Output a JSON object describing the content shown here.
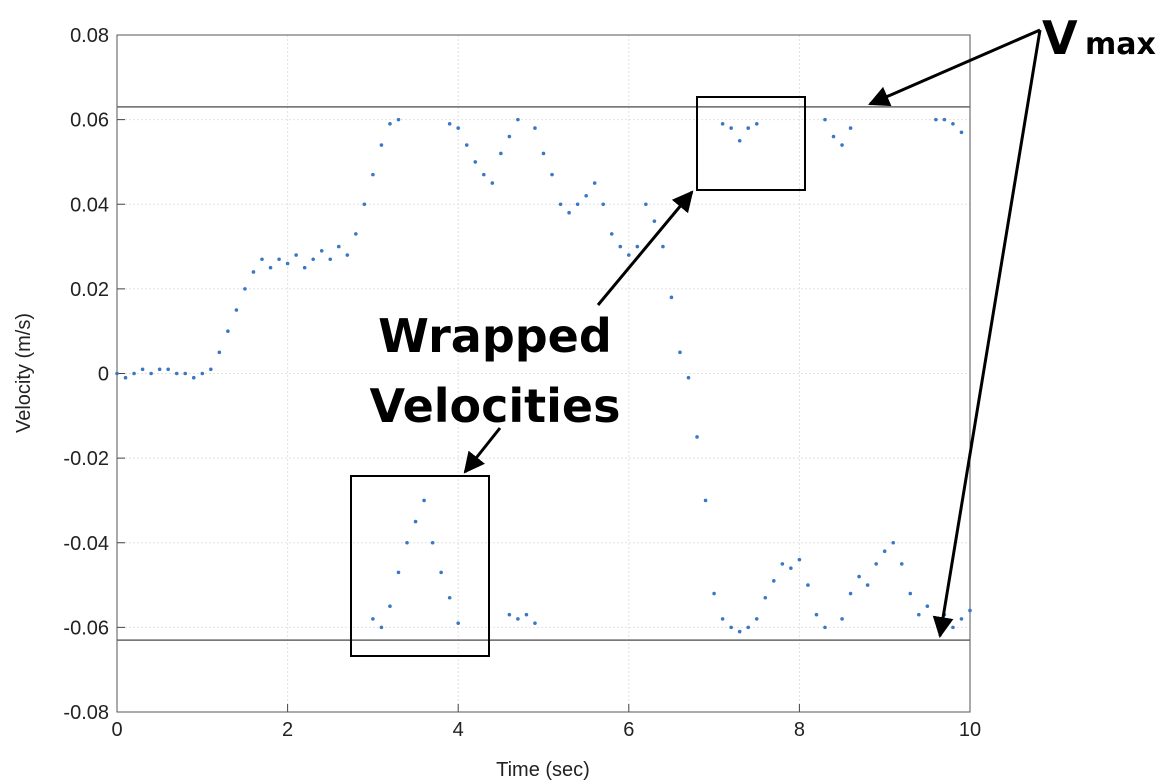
{
  "chart_data": {
    "type": "scatter",
    "xlabel": "Time (sec)",
    "ylabel": "Velocity (m/s)",
    "xlim": [
      0,
      10
    ],
    "ylim": [
      -0.08,
      0.08
    ],
    "xticks": [
      0,
      2,
      4,
      6,
      8,
      10
    ],
    "yticks": [
      -0.08,
      -0.06,
      -0.04,
      -0.02,
      0,
      0.02,
      0.04,
      0.06,
      0.08
    ],
    "grid": true,
    "color": "#3a78c2",
    "reference_lines": [
      0.063,
      -0.063
    ],
    "annotations": {
      "vmax": {
        "text": "V",
        "subscript": "max"
      },
      "wrapped": [
        "Wrapped",
        "Velocities"
      ]
    },
    "x": [
      0.0,
      0.1,
      0.2,
      0.3,
      0.4,
      0.5,
      0.6,
      0.7,
      0.8,
      0.9,
      1.0,
      1.1,
      1.2,
      1.3,
      1.4,
      1.5,
      1.6,
      1.7,
      1.8,
      1.9,
      2.0,
      2.1,
      2.2,
      2.3,
      2.4,
      2.5,
      2.6,
      2.7,
      2.8,
      2.9,
      3.0,
      3.1,
      3.2,
      3.3,
      3.0,
      3.1,
      3.2,
      3.3,
      3.4,
      3.5,
      3.6,
      3.7,
      3.8,
      3.9,
      4.0,
      3.9,
      4.0,
      4.1,
      4.2,
      4.3,
      4.4,
      4.5,
      4.6,
      4.7,
      4.6,
      4.7,
      4.8,
      4.9,
      4.9,
      5.0,
      5.1,
      5.2,
      5.3,
      5.4,
      5.5,
      5.6,
      5.7,
      5.8,
      5.9,
      6.0,
      6.1,
      6.2,
      6.3,
      6.4,
      6.5,
      6.6,
      6.7,
      6.8,
      6.9,
      7.0,
      7.1,
      7.2,
      7.3,
      7.4,
      7.5,
      7.6,
      7.7,
      7.8,
      7.9,
      8.0,
      8.1,
      8.2,
      8.3,
      7.1,
      7.2,
      7.3,
      7.4,
      7.5,
      8.3,
      8.4,
      8.5,
      8.6,
      8.5,
      8.6,
      8.7,
      8.8,
      8.9,
      9.0,
      9.1,
      9.2,
      9.3,
      9.4,
      9.5,
      9.6,
      9.7,
      9.8,
      9.9,
      10.0,
      9.6,
      9.7,
      9.8,
      9.9
    ],
    "values": [
      0.0,
      -0.001,
      0.0,
      0.001,
      0.0,
      0.001,
      0.001,
      0.0,
      0.0,
      -0.001,
      0.0,
      0.001,
      0.005,
      0.01,
      0.015,
      0.02,
      0.024,
      0.027,
      0.025,
      0.027,
      0.026,
      0.028,
      0.025,
      0.027,
      0.029,
      0.027,
      0.03,
      0.028,
      0.033,
      0.04,
      0.047,
      0.054,
      0.059,
      0.06,
      -0.058,
      -0.06,
      -0.055,
      -0.047,
      -0.04,
      -0.035,
      -0.03,
      -0.04,
      -0.047,
      -0.053,
      -0.059,
      0.059,
      0.058,
      0.054,
      0.05,
      0.047,
      0.045,
      0.052,
      0.056,
      0.06,
      -0.057,
      -0.058,
      -0.057,
      -0.059,
      0.058,
      0.052,
      0.047,
      0.04,
      0.038,
      0.04,
      0.042,
      0.045,
      0.04,
      0.033,
      0.03,
      0.028,
      0.03,
      0.04,
      0.036,
      0.03,
      0.018,
      0.005,
      -0.001,
      -0.015,
      -0.03,
      -0.052,
      -0.058,
      -0.06,
      -0.061,
      -0.06,
      -0.058,
      -0.053,
      -0.049,
      -0.045,
      -0.046,
      -0.044,
      -0.05,
      -0.057,
      -0.06,
      0.059,
      0.058,
      0.055,
      0.058,
      0.059,
      0.06,
      0.056,
      0.054,
      0.058,
      -0.058,
      -0.052,
      -0.048,
      -0.05,
      -0.045,
      -0.042,
      -0.04,
      -0.045,
      -0.052,
      -0.057,
      -0.055,
      -0.058,
      -0.057,
      -0.06,
      -0.058,
      -0.056,
      0.06,
      0.06,
      0.059,
      0.057
    ]
  }
}
